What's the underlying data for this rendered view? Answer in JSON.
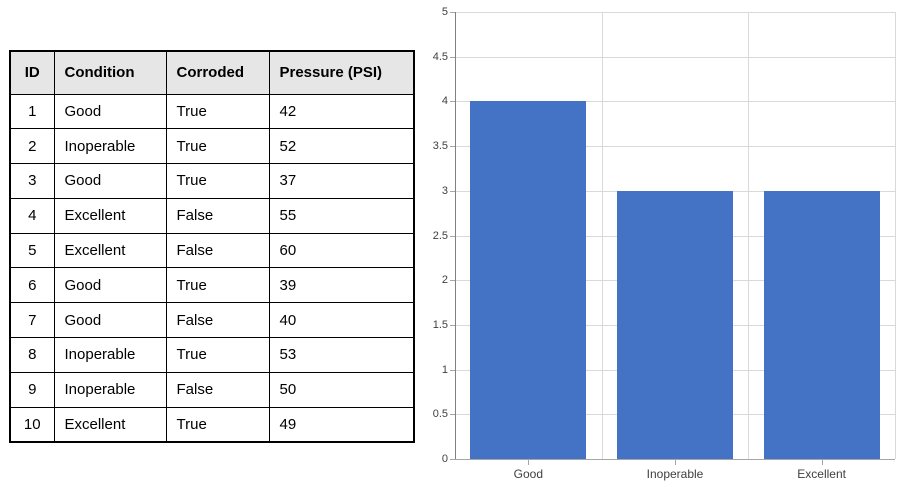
{
  "table": {
    "headers": [
      "ID",
      "Condition",
      "Corroded",
      "Pressure (PSI)"
    ],
    "rows": [
      [
        "1",
        "Good",
        "True",
        "42"
      ],
      [
        "2",
        "Inoperable",
        "True",
        "52"
      ],
      [
        "3",
        "Good",
        "True",
        "37"
      ],
      [
        "4",
        "Excellent",
        "False",
        "55"
      ],
      [
        "5",
        "Excellent",
        "False",
        "60"
      ],
      [
        "6",
        "Good",
        "True",
        "39"
      ],
      [
        "7",
        "Good",
        "False",
        "40"
      ],
      [
        "8",
        "Inoperable",
        "True",
        "53"
      ],
      [
        "9",
        "Inoperable",
        "False",
        "50"
      ],
      [
        "10",
        "Excellent",
        "True",
        "49"
      ]
    ]
  },
  "chart_data": {
    "type": "bar",
    "categories": [
      "Good",
      "Inoperable",
      "Excellent"
    ],
    "values": [
      4,
      3,
      3
    ],
    "title": "",
    "xlabel": "",
    "ylabel": "",
    "ylim": [
      0,
      5
    ],
    "y_tick_step": 0.5,
    "y_tick_labels": [
      "0",
      "0.5",
      "1",
      "1.5",
      "2",
      "2.5",
      "3",
      "3.5",
      "4",
      "4.5",
      "5"
    ],
    "grid": true,
    "legend_position": "none"
  },
  "colors": {
    "bar_fill": "#4472C4",
    "gridline": "#D9D9D9",
    "axis_line": "#808080",
    "x_axis_line": "#A6A6A6",
    "tick": "#A6A6A6",
    "table_header_bg": "#E7E6E6",
    "table_border": "#000000",
    "chart_label_text": "#404040"
  }
}
